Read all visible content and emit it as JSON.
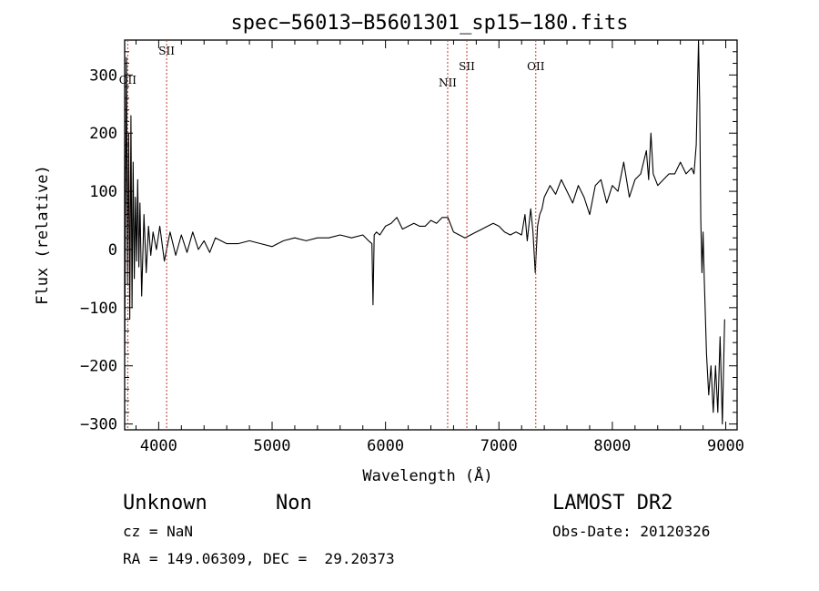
{
  "chart_data": {
    "type": "line",
    "title": "spec−56013−B5601301_sp15−180.fits",
    "xlabel": "Wavelength (Å)",
    "ylabel": "Flux (relative)",
    "xlim": [
      3700,
      9100
    ],
    "ylim": [
      -310,
      360
    ],
    "x_ticks": [
      4000,
      5000,
      6000,
      7000,
      8000,
      9000
    ],
    "y_ticks": [
      -300,
      -200,
      -100,
      0,
      100,
      200,
      300
    ],
    "x_tick_labels": [
      "4000",
      "5000",
      "6000",
      "7000",
      "8000",
      "9000"
    ],
    "y_tick_labels": [
      "−300",
      "−200",
      "−100",
      "0",
      "100",
      "200",
      "300"
    ],
    "grid": false,
    "series": [
      {
        "color": "#000000",
        "x": [
          3700,
          3715,
          3725,
          3735,
          3745,
          3755,
          3765,
          3775,
          3785,
          3795,
          3805,
          3815,
          3825,
          3835,
          3850,
          3870,
          3890,
          3910,
          3930,
          3950,
          3980,
          4010,
          4050,
          4100,
          4150,
          4200,
          4250,
          4300,
          4350,
          4400,
          4450,
          4500,
          4600,
          4700,
          4800,
          4900,
          5000,
          5100,
          5200,
          5300,
          5400,
          5500,
          5600,
          5700,
          5800,
          5850,
          5880,
          5890,
          5900,
          5920,
          5950,
          6000,
          6050,
          6100,
          6150,
          6200,
          6250,
          6300,
          6350,
          6400,
          6450,
          6500,
          6550,
          6600,
          6650,
          6700,
          6750,
          6800,
          6850,
          6900,
          6950,
          7000,
          7050,
          7100,
          7150,
          7200,
          7230,
          7250,
          7280,
          7300,
          7320,
          7340,
          7360,
          7380,
          7400,
          7450,
          7500,
          7550,
          7600,
          7650,
          7700,
          7750,
          7800,
          7850,
          7900,
          7950,
          8000,
          8050,
          8100,
          8150,
          8200,
          8250,
          8300,
          8320,
          8340,
          8360,
          8400,
          8450,
          8500,
          8550,
          8600,
          8650,
          8700,
          8720,
          8740,
          8760,
          8770,
          8780,
          8790,
          8800,
          8810,
          8830,
          8850,
          8870,
          8890,
          8910,
          8930,
          8950,
          8970,
          8990
        ],
        "y": [
          -180,
          330,
          -60,
          200,
          -120,
          230,
          -100,
          150,
          -50,
          90,
          -20,
          120,
          -30,
          80,
          -80,
          60,
          -40,
          40,
          -10,
          30,
          0,
          40,
          -20,
          30,
          -10,
          25,
          -5,
          30,
          0,
          15,
          -5,
          20,
          10,
          10,
          15,
          10,
          5,
          15,
          20,
          15,
          20,
          20,
          25,
          20,
          25,
          15,
          10,
          -95,
          25,
          30,
          25,
          40,
          45,
          55,
          35,
          40,
          45,
          40,
          40,
          50,
          45,
          55,
          55,
          30,
          25,
          20,
          25,
          30,
          35,
          40,
          45,
          40,
          30,
          25,
          30,
          25,
          60,
          15,
          70,
          30,
          -40,
          40,
          60,
          70,
          90,
          110,
          95,
          120,
          100,
          80,
          110,
          90,
          60,
          110,
          120,
          80,
          110,
          100,
          150,
          90,
          120,
          130,
          170,
          120,
          200,
          130,
          110,
          120,
          130,
          130,
          150,
          130,
          140,
          130,
          180,
          360,
          250,
          50,
          -40,
          30,
          -50,
          -180,
          -250,
          -200,
          -280,
          -200,
          -280,
          -150,
          -300,
          -120
        ]
      }
    ],
    "emission_lines": [
      {
        "label": "OII",
        "wavelength": 3727
      },
      {
        "label": "SII",
        "wavelength": 4070
      },
      {
        "label": "NII",
        "wavelength": 6548
      },
      {
        "label": "SII",
        "wavelength": 6717
      },
      {
        "label": "OII",
        "wavelength": 7325
      }
    ]
  },
  "annotations": {
    "object_class": "Unknown",
    "object_subclass": "Non",
    "survey": "LAMOST DR2",
    "cz": "cz = NaN",
    "obs_date": "Obs-Date: 20120326",
    "radec": "RA = 149.06309, DEC =  29.20373"
  }
}
